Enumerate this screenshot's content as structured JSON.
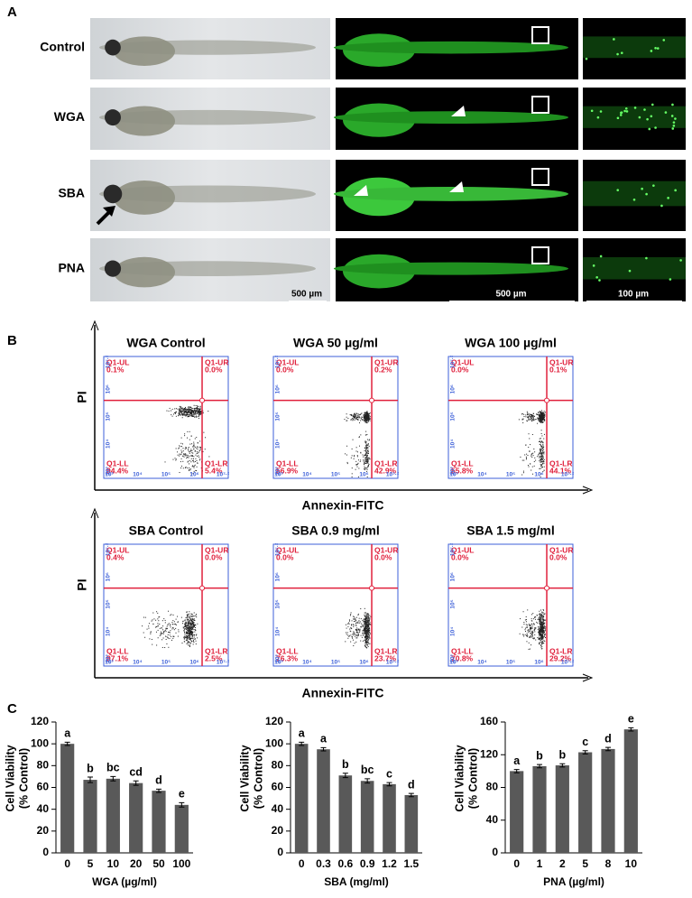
{
  "panel_labels": [
    "A",
    "B",
    "C"
  ],
  "imaging": {
    "rows": [
      "Control",
      "WGA",
      "SBA",
      "PNA"
    ],
    "scale_bars": [
      "500 µm",
      "500 µm",
      "100 µm"
    ]
  },
  "flow": {
    "tick_labels": [
      "10³",
      "10⁴",
      "10⁵",
      "10⁶",
      "10⁷·²"
    ],
    "groups": [
      {
        "ylabel": "PI",
        "xlabel": "Annexin-FITC",
        "plots": [
          {
            "title": "WGA Control",
            "quadrants": [
              {
                "name": "Q1-UL",
                "value": "0.1%"
              },
              {
                "name": "Q1-UR",
                "value": "0.0%"
              },
              {
                "name": "Q1-LL",
                "value": "94.4%"
              },
              {
                "name": "Q1-LR",
                "value": "5.4%"
              }
            ]
          },
          {
            "title": "WGA 50 µg/ml",
            "quadrants": [
              {
                "name": "Q1-UL",
                "value": "0.0%"
              },
              {
                "name": "Q1-UR",
                "value": "0.2%"
              },
              {
                "name": "Q1-LL",
                "value": "56.9%"
              },
              {
                "name": "Q1-LR",
                "value": "42.9%"
              }
            ]
          },
          {
            "title": "WGA 100 µg/ml",
            "quadrants": [
              {
                "name": "Q1-UL",
                "value": "0.0%"
              },
              {
                "name": "Q1-UR",
                "value": "0.1%"
              },
              {
                "name": "Q1-LL",
                "value": "55.8%"
              },
              {
                "name": "Q1-LR",
                "value": "44.1%"
              }
            ]
          }
        ]
      },
      {
        "ylabel": "PI",
        "xlabel": "Annexin-FITC",
        "plots": [
          {
            "title": "SBA Control",
            "quadrants": [
              {
                "name": "Q1-UL",
                "value": "0.4%"
              },
              {
                "name": "Q1-UR",
                "value": "0.0%"
              },
              {
                "name": "Q1-LL",
                "value": "97.1%"
              },
              {
                "name": "Q1-LR",
                "value": "2.5%"
              }
            ]
          },
          {
            "title": "SBA 0.9 mg/ml",
            "quadrants": [
              {
                "name": "Q1-UL",
                "value": "0.0%"
              },
              {
                "name": "Q1-UR",
                "value": "0.0%"
              },
              {
                "name": "Q1-LL",
                "value": "76.3%"
              },
              {
                "name": "Q1-LR",
                "value": "23.7%"
              }
            ]
          },
          {
            "title": "SBA 1.5 mg/ml",
            "quadrants": [
              {
                "name": "Q1-UL",
                "value": "0.0%"
              },
              {
                "name": "Q1-UR",
                "value": "0.0%"
              },
              {
                "name": "Q1-LL",
                "value": "70.8%"
              },
              {
                "name": "Q1-LR",
                "value": "29.2%"
              }
            ]
          }
        ]
      }
    ]
  },
  "chart_data": [
    {
      "type": "bar",
      "xlabel": "WGA (µg/ml)",
      "ylabel": [
        "Cell Viability",
        "(% Control)"
      ],
      "categories": [
        "0",
        "5",
        "10",
        "20",
        "50",
        "100"
      ],
      "values": [
        100,
        67,
        68,
        64,
        57,
        44
      ],
      "errors": [
        1.5,
        2.5,
        2,
        2,
        1.5,
        2
      ],
      "annotations": [
        "a",
        "b",
        "bc",
        "cd",
        "d",
        "e"
      ],
      "color": "#595959",
      "ylim": [
        0,
        120
      ],
      "yticks": [
        0,
        20,
        40,
        60,
        80,
        100,
        120
      ]
    },
    {
      "type": "bar",
      "xlabel": "SBA (mg/ml)",
      "ylabel": [
        "Cell Viability",
        "(% Control)"
      ],
      "categories": [
        "0",
        "0.3",
        "0.6",
        "0.9",
        "1.2",
        "1.5"
      ],
      "values": [
        100,
        95,
        71,
        66,
        63,
        53
      ],
      "errors": [
        1.5,
        1.5,
        2,
        2,
        1.5,
        1.5
      ],
      "annotations": [
        "a",
        "a",
        "b",
        "bc",
        "c",
        "d"
      ],
      "color": "#595959",
      "ylim": [
        0,
        120
      ],
      "yticks": [
        0,
        20,
        40,
        60,
        80,
        100,
        120
      ]
    },
    {
      "type": "bar",
      "xlabel": "PNA (µg/ml)",
      "ylabel": [
        "Cell Viability",
        "(% Control)"
      ],
      "categories": [
        "0",
        "1",
        "2",
        "5",
        "8",
        "10"
      ],
      "values": [
        100,
        106,
        107,
        123,
        127,
        151
      ],
      "errors": [
        2,
        2,
        2,
        2,
        2,
        2
      ],
      "annotations": [
        "a",
        "b",
        "b",
        "c",
        "d",
        "e"
      ],
      "color": "#595959",
      "ylim": [
        0,
        160
      ],
      "yticks": [
        0,
        40,
        80,
        120,
        160
      ]
    }
  ]
}
